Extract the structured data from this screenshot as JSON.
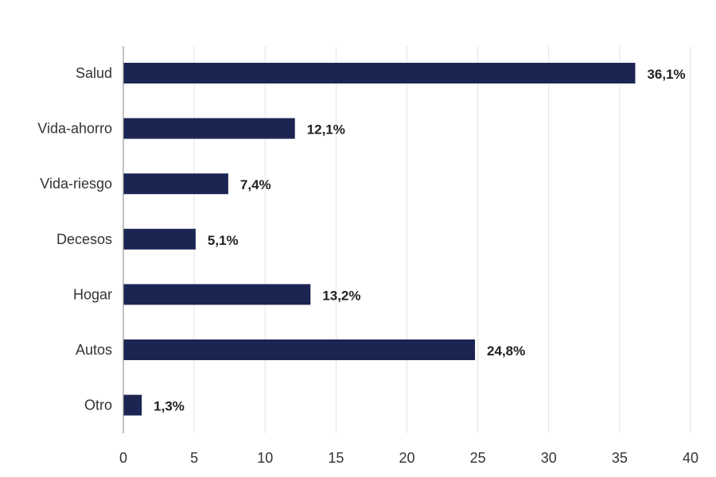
{
  "chart_data": {
    "type": "bar",
    "orientation": "horizontal",
    "title": "",
    "xlabel": "",
    "ylabel": "",
    "categories": [
      "Salud",
      "Vida-ahorro",
      "Vida-riesgo",
      "Decesos",
      "Hogar",
      "Autos",
      "Otro"
    ],
    "values": [
      36.1,
      12.1,
      7.4,
      5.1,
      13.2,
      24.8,
      1.3
    ],
    "data_labels": [
      "36,1%",
      "12,1%",
      "7,4%",
      "5,1%",
      "13,2%",
      "24,8%",
      "1,3%"
    ],
    "xlim": [
      0,
      40
    ],
    "x_ticks": [
      0,
      5,
      10,
      15,
      20,
      25,
      30,
      35,
      40
    ],
    "grid": "vertical",
    "legend": "none",
    "bar_color": "#1c2452"
  }
}
